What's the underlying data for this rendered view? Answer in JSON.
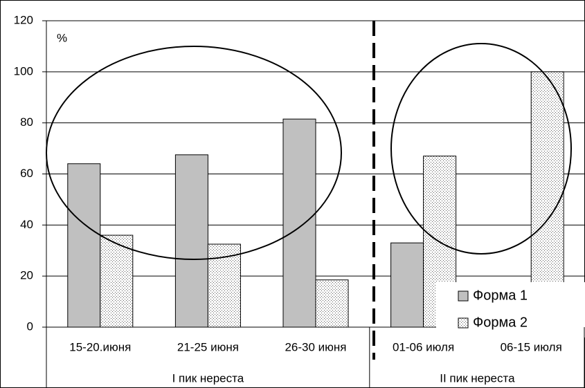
{
  "chart_data": {
    "type": "bar",
    "y_label": "%",
    "categories": [
      "15-20.июня",
      "21-25 июня",
      "26-30 июня",
      "01-06 июля",
      "06-15 июля"
    ],
    "groups": [
      "I пик нереста",
      "II пик нереста"
    ],
    "series": [
      {
        "name": "Форма 1",
        "color": "#c0c0c0",
        "values": [
          64,
          67.5,
          81.5,
          33,
          0
        ]
      },
      {
        "name": "Форма 2",
        "color": "#ffffff",
        "hatch": "dots",
        "values": [
          36,
          32.5,
          18.5,
          67,
          100
        ]
      }
    ],
    "ylim": [
      0,
      120
    ],
    "yticks": [
      0,
      20,
      40,
      60,
      80,
      100,
      120
    ],
    "grid": true
  }
}
